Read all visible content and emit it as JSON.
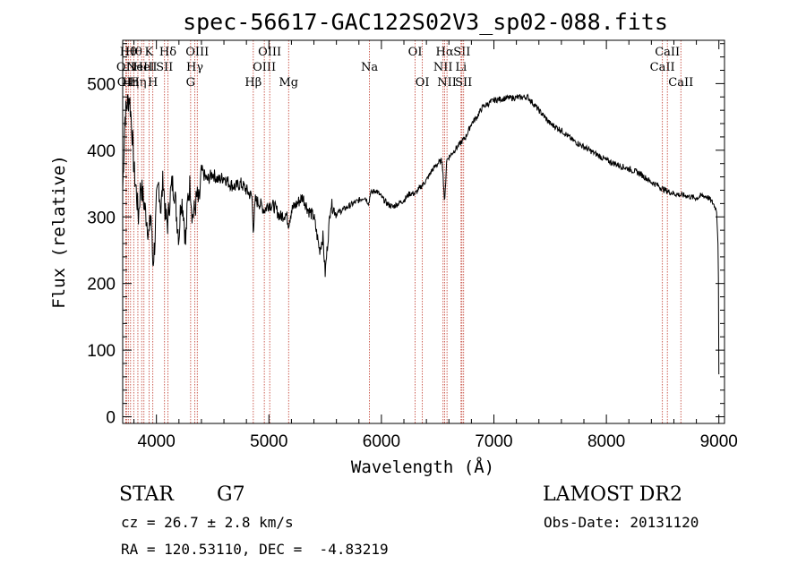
{
  "chart_data": {
    "type": "line",
    "title": "spec-56617-GAC122S02V3_sp02-088.fits",
    "xlabel": "Wavelength (Å)",
    "ylabel": "Flux (relative)",
    "xlim": [
      3700,
      9050
    ],
    "ylim": [
      -10,
      565
    ],
    "x_ticks": [
      4000,
      5000,
      6000,
      7000,
      8000,
      9000
    ],
    "y_ticks": [
      0,
      100,
      200,
      300,
      400,
      500
    ],
    "grid": false,
    "series": [
      {
        "x": [
          3700,
          3720,
          3740,
          3760,
          3780,
          3800,
          3820,
          3840,
          3860,
          3880,
          3900,
          3920,
          3935,
          3950,
          3968,
          3985,
          4000,
          4020,
          4040,
          4060,
          4080,
          4101,
          4120,
          4140,
          4160,
          4180,
          4200,
          4220,
          4240,
          4260,
          4280,
          4300,
          4320,
          4340,
          4360,
          4380,
          4400,
          4450,
          4500,
          4550,
          4600,
          4650,
          4700,
          4750,
          4800,
          4850,
          4861,
          4880,
          4920,
          4960,
          5000,
          5050,
          5100,
          5150,
          5175,
          5200,
          5250,
          5300,
          5350,
          5400,
          5450,
          5480,
          5500,
          5550,
          5600,
          5650,
          5700,
          5750,
          5800,
          5850,
          5890,
          5900,
          5950,
          6000,
          6050,
          6100,
          6150,
          6200,
          6250,
          6300,
          6350,
          6400,
          6450,
          6500,
          6540,
          6563,
          6580,
          6600,
          6650,
          6700,
          6750,
          6800,
          6850,
          6900,
          6950,
          7000,
          7100,
          7200,
          7300,
          7350,
          7400,
          7500,
          7600,
          7700,
          7800,
          7900,
          8000,
          8100,
          8200,
          8300,
          8400,
          8450,
          8500,
          8550,
          8600,
          8650,
          8700,
          8750,
          8800,
          8850,
          8900,
          8950,
          8980,
          8995,
          9000
        ],
        "y": [
          340,
          450,
          470,
          480,
          440,
          370,
          340,
          300,
          350,
          330,
          310,
          290,
          270,
          310,
          230,
          260,
          320,
          350,
          310,
          360,
          300,
          290,
          330,
          350,
          340,
          300,
          270,
          330,
          310,
          260,
          330,
          350,
          300,
          310,
          330,
          320,
          370,
          355,
          365,
          355,
          360,
          350,
          345,
          350,
          340,
          330,
          280,
          325,
          320,
          310,
          320,
          315,
          300,
          305,
          290,
          310,
          320,
          330,
          310,
          300,
          250,
          270,
          215,
          320,
          305,
          310,
          315,
          320,
          325,
          330,
          320,
          335,
          340,
          330,
          320,
          315,
          320,
          325,
          335,
          335,
          345,
          355,
          370,
          380,
          385,
          320,
          385,
          390,
          400,
          410,
          420,
          440,
          450,
          465,
          470,
          475,
          478,
          479,
          480,
          470,
          460,
          440,
          430,
          415,
          405,
          395,
          385,
          378,
          372,
          365,
          352,
          348,
          342,
          338,
          335,
          333,
          332,
          330,
          328,
          332,
          330,
          320,
          310,
          250,
          60
        ],
        "labels": []
      }
    ],
    "lines": [
      {
        "w": 3727,
        "label": "OII",
        "row": 2
      },
      {
        "w": 3734,
        "label": "OII",
        "row": 3
      },
      {
        "w": 3750,
        "label": "Hθ",
        "row": 1
      },
      {
        "w": 3770,
        "label": "Hη",
        "row": 3
      },
      {
        "w": 3798,
        "label": "Hθ",
        "row": 1
      },
      {
        "w": 3835,
        "label": "Hη",
        "row": 3
      },
      {
        "w": 3869,
        "label": "NeIII",
        "row": 2
      },
      {
        "w": 3889,
        "label": "HeI",
        "row": 2
      },
      {
        "w": 3934,
        "label": "K",
        "row": 1
      },
      {
        "w": 3968,
        "label": "H",
        "row": 3
      },
      {
        "w": 4072,
        "label": "SII",
        "row": 2
      },
      {
        "w": 4102,
        "label": "Hδ",
        "row": 1
      },
      {
        "w": 4304,
        "label": "G",
        "row": 3
      },
      {
        "w": 4341,
        "label": "Hγ",
        "row": 2
      },
      {
        "w": 4363,
        "label": "OIII",
        "row": 1
      },
      {
        "w": 4861,
        "label": "Hβ",
        "row": 3
      },
      {
        "w": 4959,
        "label": "OIII",
        "row": 2
      },
      {
        "w": 5007,
        "label": "OIII",
        "row": 1
      },
      {
        "w": 5175,
        "label": "Mg",
        "row": 3
      },
      {
        "w": 5894,
        "label": "Na",
        "row": 2
      },
      {
        "w": 6300,
        "label": "OI",
        "row": 1
      },
      {
        "w": 6364,
        "label": "OI",
        "row": 3
      },
      {
        "w": 6548,
        "label": "NII",
        "row": 2
      },
      {
        "w": 6563,
        "label": "Hα",
        "row": 1
      },
      {
        "w": 6583,
        "label": "NII",
        "row": 3
      },
      {
        "w": 6708,
        "label": "Li",
        "row": 2
      },
      {
        "w": 6716,
        "label": "SII",
        "row": 1
      },
      {
        "w": 6731,
        "label": "SII",
        "row": 3
      },
      {
        "w": 8498,
        "label": "CaII",
        "row": 2
      },
      {
        "w": 8542,
        "label": "CaII",
        "row": 1
      },
      {
        "w": 8662,
        "label": "CaII",
        "row": 3
      }
    ]
  },
  "info": {
    "class": "STAR",
    "subclass": "G7",
    "survey": "LAMOST DR2",
    "cz": "cz = 26.7 ± 2.8 km/s",
    "obs_date": "Obs-Date: 20131120",
    "coords": "RA = 120.53110, DEC =  -4.83219"
  }
}
